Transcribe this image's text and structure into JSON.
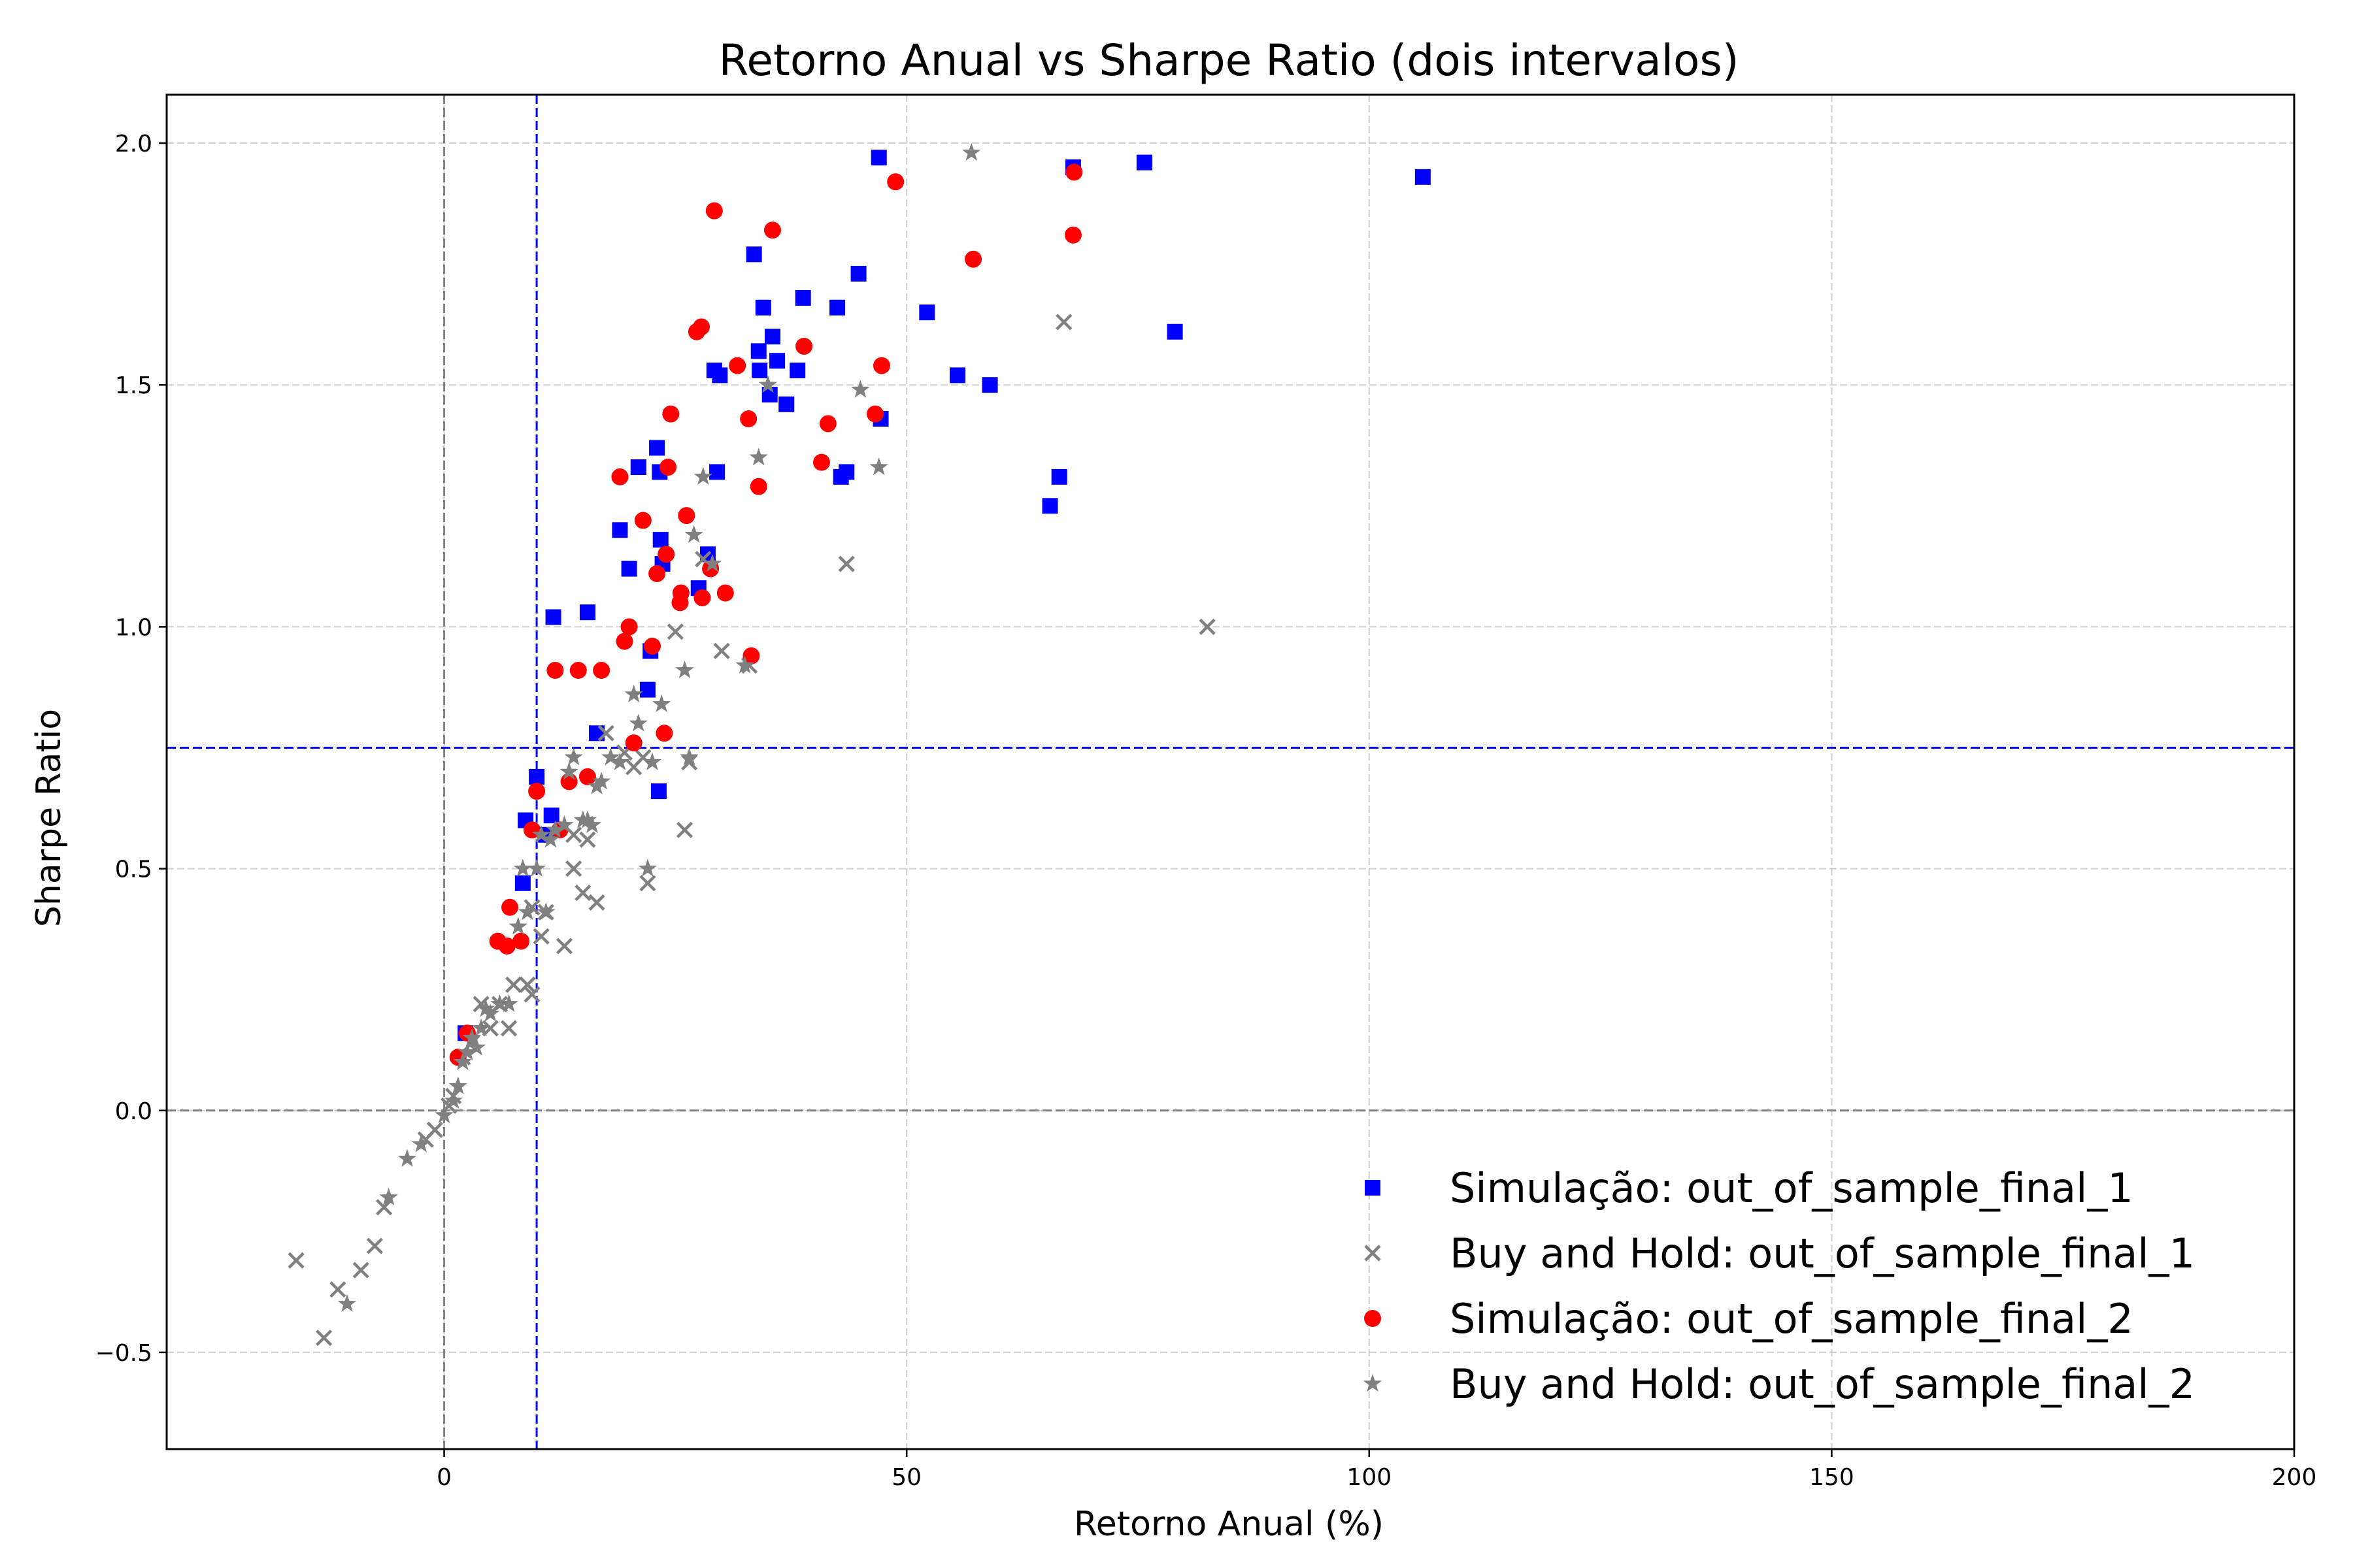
{
  "chart_data": {
    "type": "scatter",
    "title": "Retorno Anual vs Sharpe Ratio (dois intervalos)",
    "xlabel": "Retorno Anual (%)",
    "ylabel": "Sharpe Ratio",
    "xlim": [
      -30,
      200
    ],
    "ylim": [
      -0.7,
      2.1
    ],
    "xticks": [
      0,
      50,
      100,
      150,
      200
    ],
    "yticks": [
      -0.5,
      0.0,
      0.5,
      1.0,
      1.5,
      2.0
    ],
    "xtick_labels": [
      "0",
      "50",
      "100",
      "150",
      "200"
    ],
    "ytick_labels": [
      "−0.5",
      "0.0",
      "0.5",
      "1.0",
      "1.5",
      "2.0"
    ],
    "grid": true,
    "legend_position": "lower-right",
    "reference_lines": [
      {
        "orientation": "vertical",
        "value": 0,
        "color": "#808080"
      },
      {
        "orientation": "horizontal",
        "value": 0,
        "color": "#808080"
      },
      {
        "orientation": "vertical",
        "value": 10,
        "color": "#0000ff"
      },
      {
        "orientation": "horizontal",
        "value": 0.75,
        "color": "#0000ff"
      }
    ],
    "series": [
      {
        "name": "Simulação: out_of_sample_final_1",
        "marker": "square",
        "color": "#0000ff",
        "points": [
          [
            2.3,
            0.16
          ],
          [
            8.5,
            0.47
          ],
          [
            8.8,
            0.6
          ],
          [
            10,
            0.69
          ],
          [
            11,
            0.57
          ],
          [
            11.6,
            0.61
          ],
          [
            11.8,
            1.02
          ],
          [
            15.5,
            1.03
          ],
          [
            16.5,
            0.78
          ],
          [
            19,
            1.2
          ],
          [
            20,
            1.12
          ],
          [
            21,
            1.33
          ],
          [
            22,
            0.87
          ],
          [
            22.3,
            0.95
          ],
          [
            23,
            1.37
          ],
          [
            23.2,
            0.66
          ],
          [
            23.3,
            1.32
          ],
          [
            23.4,
            1.18
          ],
          [
            23.6,
            1.13
          ],
          [
            27.5,
            1.08
          ],
          [
            28.5,
            1.15
          ],
          [
            29.2,
            1.53
          ],
          [
            29.5,
            1.32
          ],
          [
            29.8,
            1.52
          ],
          [
            33.5,
            1.77
          ],
          [
            34,
            1.57
          ],
          [
            34.1,
            1.53
          ],
          [
            34.5,
            1.66
          ],
          [
            35.2,
            1.48
          ],
          [
            35.5,
            1.6
          ],
          [
            36,
            1.55
          ],
          [
            37,
            1.46
          ],
          [
            38.2,
            1.53
          ],
          [
            38.8,
            1.68
          ],
          [
            42.5,
            1.66
          ],
          [
            42.9,
            1.31
          ],
          [
            43.5,
            1.32
          ],
          [
            44.8,
            1.73
          ],
          [
            47,
            1.97
          ],
          [
            47.2,
            1.43
          ],
          [
            52.2,
            1.65
          ],
          [
            55.5,
            1.52
          ],
          [
            59,
            1.5
          ],
          [
            65.5,
            1.25
          ],
          [
            66.5,
            1.31
          ],
          [
            68,
            1.95
          ],
          [
            75.7,
            1.96
          ],
          [
            79,
            1.61
          ],
          [
            105.8,
            1.93
          ]
        ]
      },
      {
        "name": "Buy and Hold: out_of_sample_final_1",
        "marker": "x",
        "color": "#808080",
        "points": [
          [
            -16,
            -0.31
          ],
          [
            -13,
            -0.47
          ],
          [
            -11.5,
            -0.37
          ],
          [
            -9,
            -0.33
          ],
          [
            -7.5,
            -0.28
          ],
          [
            -6.5,
            -0.2
          ],
          [
            -2,
            -0.06
          ],
          [
            -1,
            -0.04
          ],
          [
            0.5,
            0.01
          ],
          [
            1,
            0.03
          ],
          [
            2,
            0.11
          ],
          [
            3,
            0.14
          ],
          [
            4,
            0.22
          ],
          [
            5,
            0.17
          ],
          [
            6,
            0.22
          ],
          [
            7,
            0.17
          ],
          [
            7.5,
            0.26
          ],
          [
            9,
            0.26
          ],
          [
            9.5,
            0.24
          ],
          [
            9.5,
            0.42
          ],
          [
            10.5,
            0.36
          ],
          [
            11,
            0.41
          ],
          [
            13,
            0.34
          ],
          [
            14,
            0.5
          ],
          [
            14,
            0.57
          ],
          [
            15,
            0.45
          ],
          [
            15.5,
            0.56
          ],
          [
            16.5,
            0.43
          ],
          [
            17.5,
            0.78
          ],
          [
            19.5,
            0.74
          ],
          [
            20.5,
            0.71
          ],
          [
            21.5,
            0.73
          ],
          [
            22,
            0.47
          ],
          [
            25,
            0.99
          ],
          [
            26,
            0.58
          ],
          [
            26.5,
            0.72
          ],
          [
            28,
            1.14
          ],
          [
            30,
            0.95
          ],
          [
            33,
            0.92
          ],
          [
            43.5,
            1.13
          ],
          [
            67,
            1.63
          ],
          [
            82.5,
            1.0
          ]
        ]
      },
      {
        "name": "Simulação: out_of_sample_final_2",
        "marker": "circle",
        "color": "#ff0000",
        "points": [
          [
            1.5,
            0.11
          ],
          [
            2.5,
            0.16
          ],
          [
            5.8,
            0.35
          ],
          [
            6.8,
            0.34
          ],
          [
            7.1,
            0.42
          ],
          [
            8.3,
            0.35
          ],
          [
            9.5,
            0.58
          ],
          [
            10,
            0.66
          ],
          [
            12,
            0.91
          ],
          [
            12.5,
            0.58
          ],
          [
            13.5,
            0.68
          ],
          [
            14.5,
            0.91
          ],
          [
            15.5,
            0.69
          ],
          [
            17,
            0.91
          ],
          [
            19,
            1.31
          ],
          [
            19.5,
            0.97
          ],
          [
            20,
            1.0
          ],
          [
            20.5,
            0.76
          ],
          [
            21.5,
            1.22
          ],
          [
            22.5,
            0.96
          ],
          [
            23,
            1.11
          ],
          [
            23.8,
            0.78
          ],
          [
            24,
            1.15
          ],
          [
            24.2,
            1.33
          ],
          [
            24.5,
            1.44
          ],
          [
            25.5,
            1.05
          ],
          [
            25.6,
            1.07
          ],
          [
            26.2,
            1.23
          ],
          [
            27.3,
            1.61
          ],
          [
            27.8,
            1.62
          ],
          [
            27.9,
            1.06
          ],
          [
            28.8,
            1.12
          ],
          [
            29.2,
            1.86
          ],
          [
            30.4,
            1.07
          ],
          [
            31.7,
            1.54
          ],
          [
            32.9,
            1.43
          ],
          [
            33.2,
            0.94
          ],
          [
            34,
            1.29
          ],
          [
            35.5,
            1.82
          ],
          [
            38.9,
            1.58
          ],
          [
            40.8,
            1.34
          ],
          [
            41.5,
            1.42
          ],
          [
            46.6,
            1.44
          ],
          [
            47.3,
            1.54
          ],
          [
            48.8,
            1.92
          ],
          [
            57.2,
            1.76
          ],
          [
            68,
            1.81
          ],
          [
            68.1,
            1.94
          ]
        ]
      },
      {
        "name": "Buy and Hold: out_of_sample_final_2",
        "marker": "star",
        "color": "#808080",
        "points": [
          [
            -10.5,
            -0.4
          ],
          [
            -6,
            -0.18
          ],
          [
            -4,
            -0.1
          ],
          [
            -2.5,
            -0.07
          ],
          [
            0,
            -0.01
          ],
          [
            1,
            0.02
          ],
          [
            1.5,
            0.05
          ],
          [
            2,
            0.1
          ],
          [
            2.5,
            0.12
          ],
          [
            3,
            0.15
          ],
          [
            3.5,
            0.13
          ],
          [
            4,
            0.17
          ],
          [
            4.5,
            0.21
          ],
          [
            5,
            0.2
          ],
          [
            6,
            0.22
          ],
          [
            7,
            0.22
          ],
          [
            8,
            0.38
          ],
          [
            8.5,
            0.5
          ],
          [
            9,
            0.41
          ],
          [
            10,
            0.5
          ],
          [
            10.5,
            0.57
          ],
          [
            11,
            0.41
          ],
          [
            11.5,
            0.56
          ],
          [
            12,
            0.58
          ],
          [
            13,
            0.59
          ],
          [
            13.5,
            0.7
          ],
          [
            14,
            0.73
          ],
          [
            15,
            0.6
          ],
          [
            15.5,
            0.6
          ],
          [
            16,
            0.59
          ],
          [
            16.5,
            0.67
          ],
          [
            17,
            0.68
          ],
          [
            18,
            0.73
          ],
          [
            19,
            0.72
          ],
          [
            20.5,
            0.86
          ],
          [
            21,
            0.8
          ],
          [
            22,
            0.5
          ],
          [
            22.5,
            0.72
          ],
          [
            23.5,
            0.84
          ],
          [
            26,
            0.91
          ],
          [
            26.5,
            0.73
          ],
          [
            27,
            1.19
          ],
          [
            28,
            1.31
          ],
          [
            29,
            1.13
          ],
          [
            32.5,
            0.92
          ],
          [
            34,
            1.35
          ],
          [
            35,
            1.5
          ],
          [
            45,
            1.49
          ],
          [
            47,
            1.33
          ],
          [
            57,
            1.98
          ]
        ]
      }
    ]
  }
}
